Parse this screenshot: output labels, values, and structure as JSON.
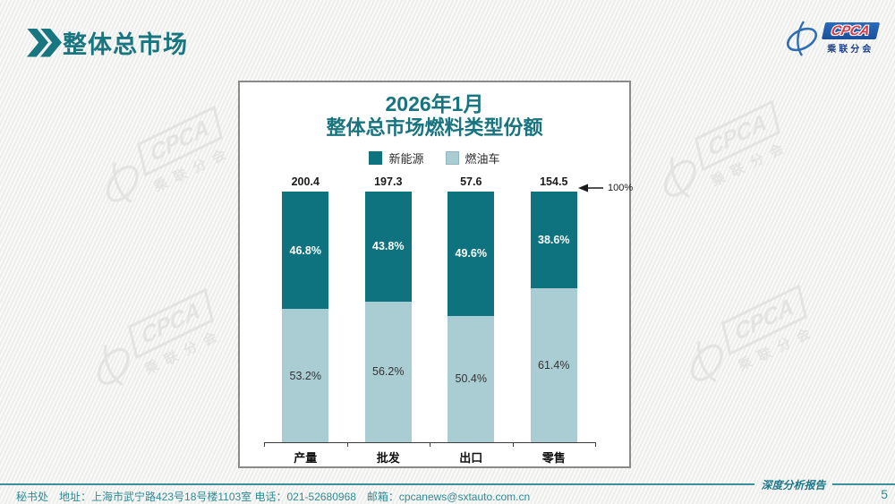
{
  "header": {
    "title": "整体总市场"
  },
  "logo": {
    "brand": "CPCA",
    "brand_cn": "乘联分会"
  },
  "watermark": {
    "brand": "CPCA",
    "brand_cn": "乘联分会"
  },
  "footer": {
    "contact": "秘书处　地址：上海市武宁路423号18号楼1103室  电话：021-52680968　邮箱：cpcanews@sxtauto.com.cn",
    "report_label": "深度分析报告",
    "page_number": "5"
  },
  "colors": {
    "accent": "#17767F",
    "footer_teal": "#2E8B96",
    "rule_teal": "#3A8F9B",
    "nev_dark": "#0E737E",
    "ice_light": "#A9CDD3"
  },
  "chart_data": {
    "type": "bar",
    "stacked": true,
    "percent_axis": true,
    "title_line1": "2026年1月",
    "title_line2": "整体总市场燃料类型份额",
    "categories": [
      "产量",
      "批发",
      "出口",
      "零售"
    ],
    "totals": [
      200.4,
      197.3,
      57.6,
      154.5
    ],
    "series": [
      {
        "name": "新能源",
        "color": "#0E737E",
        "values_pct": [
          46.8,
          43.8,
          49.6,
          38.6
        ]
      },
      {
        "name": "燃油车",
        "color": "#A9CDD3",
        "values_pct": [
          53.2,
          56.2,
          50.4,
          61.4
        ]
      }
    ],
    "annotation_label": "100%",
    "ylim": [
      0,
      100
    ],
    "legend_position": "top",
    "grid": false
  }
}
